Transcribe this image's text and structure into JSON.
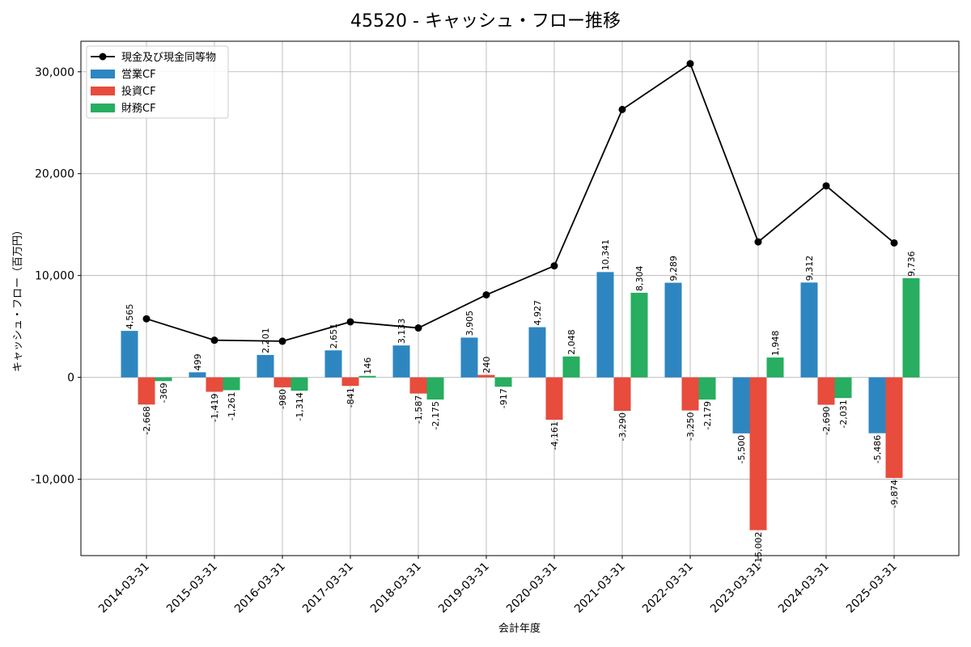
{
  "chart_data": {
    "type": "bar",
    "title": "45520 - キャッシュ・フロー推移",
    "xlabel": "会計年度",
    "ylabel": "キャッシュ・フロー（百万円）",
    "ylim": [
      -17500,
      33000
    ],
    "yticks": [
      -10000,
      0,
      10000,
      20000,
      30000
    ],
    "ytick_labels": [
      "-10,000",
      "0",
      "10,000",
      "20,000",
      "30,000"
    ],
    "grid": true,
    "legend_position": "top-left",
    "categories": [
      "2014-03-31",
      "2015-03-31",
      "2016-03-31",
      "2017-03-31",
      "2018-03-31",
      "2019-03-31",
      "2020-03-31",
      "2021-03-31",
      "2022-03-31",
      "2023-03-31",
      "2024-03-31",
      "2025-03-31"
    ],
    "series": [
      {
        "name": "営業CF",
        "type": "bar",
        "color": "#2e86c1",
        "values": [
          4565,
          499,
          2201,
          2651,
          3133,
          3905,
          4927,
          10341,
          9289,
          -5500,
          9312,
          -5486
        ],
        "labels": [
          "4,565",
          "499",
          "2,201",
          "2,651",
          "3,133",
          "3,905",
          "4,927",
          "10,341",
          "9,289",
          "-5,500",
          "9,312",
          "-5,486"
        ]
      },
      {
        "name": "投資CF",
        "type": "bar",
        "color": "#e74c3c",
        "values": [
          -2668,
          -1419,
          -980,
          -841,
          -1587,
          240,
          -4161,
          -3290,
          -3250,
          -15002,
          -2690,
          -9874
        ],
        "labels": [
          "-2,668",
          "-1,419",
          "-980",
          "-841",
          "-1,587",
          "240",
          "-4,161",
          "-3,290",
          "-3,250",
          "-15,002",
          "-2,690",
          "-9,874"
        ]
      },
      {
        "name": "財務CF",
        "type": "bar",
        "color": "#27ae60",
        "values": [
          -369,
          -1261,
          -1314,
          146,
          -2175,
          -917,
          2048,
          8304,
          -2179,
          1948,
          -2031,
          9736
        ],
        "labels": [
          "-369",
          "-1,261",
          "-1,314",
          "146",
          "-2,175",
          "-917",
          "2,048",
          "8,304",
          "-2,179",
          "1,948",
          "-2,031",
          "9,736"
        ]
      }
    ],
    "line": {
      "name": "現金及び現金同等物",
      "color": "#000000",
      "values": [
        5750,
        3650,
        3550,
        5450,
        4850,
        8100,
        10950,
        26300,
        30800,
        13300,
        18800,
        13200
      ]
    }
  }
}
